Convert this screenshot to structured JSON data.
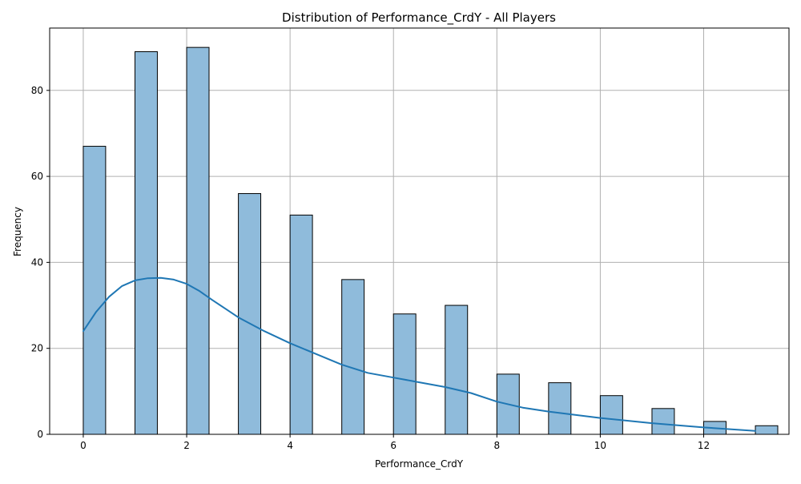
{
  "chart_data": {
    "type": "bar",
    "title": "Distribution of Performance_CrdY - All Players",
    "xlabel": "Performance_CrdY",
    "ylabel": "Frequency",
    "xlim": [
      -0.65,
      13.65
    ],
    "ylim": [
      0,
      94.5
    ],
    "xticks": [
      0,
      2,
      4,
      6,
      8,
      10,
      12
    ],
    "yticks": [
      0,
      20,
      40,
      60,
      80
    ],
    "xtick_labels": [
      "0",
      "2",
      "4",
      "6",
      "8",
      "10",
      "12"
    ],
    "ytick_labels": [
      "0",
      "20",
      "40",
      "60",
      "80"
    ],
    "grid": true,
    "bin_width": 0.433,
    "bins": [
      {
        "x": 0,
        "value": 67
      },
      {
        "x": 1,
        "value": 89
      },
      {
        "x": 2,
        "value": 90
      },
      {
        "x": 3,
        "value": 56
      },
      {
        "x": 4,
        "value": 51
      },
      {
        "x": 5,
        "value": 36
      },
      {
        "x": 6,
        "value": 28
      },
      {
        "x": 7,
        "value": 30
      },
      {
        "x": 8,
        "value": 14
      },
      {
        "x": 9,
        "value": 12
      },
      {
        "x": 10,
        "value": 9
      },
      {
        "x": 11,
        "value": 6
      },
      {
        "x": 12,
        "value": 3
      },
      {
        "x": 13,
        "value": 2
      }
    ],
    "kde": {
      "x": [
        0,
        0.25,
        0.5,
        0.75,
        1,
        1.25,
        1.5,
        1.75,
        2,
        2.25,
        2.5,
        2.75,
        3,
        3.5,
        4,
        4.5,
        5,
        5.5,
        6,
        6.5,
        7,
        7.5,
        8,
        8.5,
        9,
        10,
        11,
        12,
        13
      ],
      "y": [
        24,
        28.5,
        32,
        34.5,
        35.8,
        36.3,
        36.4,
        36,
        35,
        33.3,
        31.2,
        29.2,
        27.2,
        24,
        21.2,
        18.7,
        16.2,
        14.3,
        13.2,
        12.1,
        11,
        9.6,
        7.6,
        6.2,
        5.3,
        3.8,
        2.6,
        1.6,
        0.8
      ]
    },
    "colors": {
      "bar_fill": "#8fbbdb",
      "bar_edge": "#000000",
      "kde_line": "#1f77b4",
      "grid": "#b0b0b0"
    }
  }
}
